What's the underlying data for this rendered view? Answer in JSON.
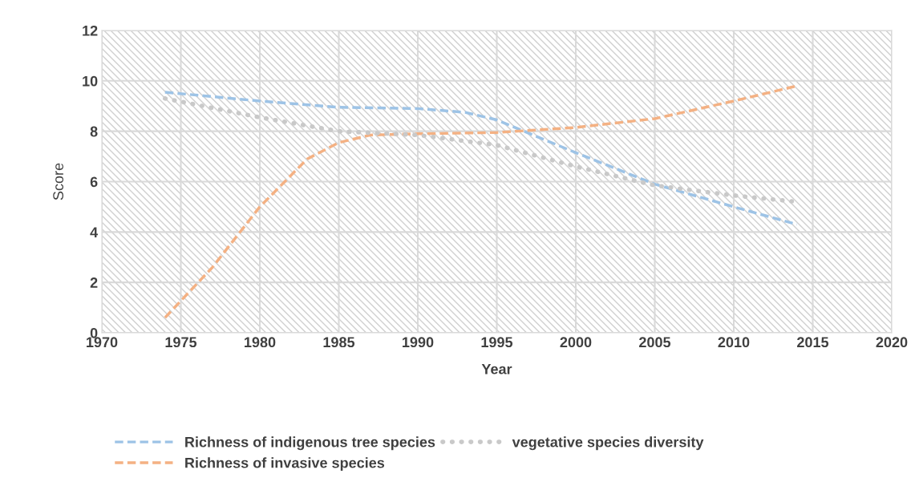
{
  "chart_data": {
    "type": "line",
    "xlabel": "Year",
    "ylabel": "Score",
    "xlim": [
      1970,
      2020
    ],
    "xticks": [
      1970,
      1975,
      1980,
      1985,
      1990,
      1995,
      2000,
      2005,
      2010,
      2015,
      2020
    ],
    "ylim": [
      0,
      12
    ],
    "yticks": [
      0,
      2,
      4,
      6,
      8,
      10,
      12
    ],
    "grid": true,
    "legend": "bottom",
    "marker": "none",
    "series": [
      {
        "name": "Richness of indigenous tree species",
        "color": "#9dc3e6",
        "line_style": "dashed",
        "x": [
          1974,
          1980,
          1985,
          1990,
          1993,
          1995,
          2000,
          2005,
          2010,
          2014
        ],
        "values": [
          9.55,
          9.2,
          8.95,
          8.9,
          8.75,
          8.45,
          7.15,
          5.9,
          5.0,
          4.3
        ]
      },
      {
        "name": "Richness of invasive species",
        "color": "#f4b183",
        "line_style": "dashed",
        "x": [
          1974,
          1977,
          1980,
          1983,
          1985,
          1987,
          1990,
          1995,
          2000,
          2005,
          2010,
          2014
        ],
        "values": [
          0.6,
          2.6,
          5.0,
          6.9,
          7.55,
          7.85,
          7.9,
          7.95,
          8.15,
          8.5,
          9.2,
          9.8
        ]
      },
      {
        "name": "vegetative species diversity",
        "color": "#c9c9c9",
        "line_style": "dotted",
        "x": [
          1974,
          1980,
          1985,
          1990,
          1995,
          2000,
          2005,
          2010,
          2014
        ],
        "values": [
          9.3,
          8.55,
          8.0,
          7.85,
          7.45,
          6.6,
          5.85,
          5.45,
          5.2
        ]
      }
    ]
  }
}
